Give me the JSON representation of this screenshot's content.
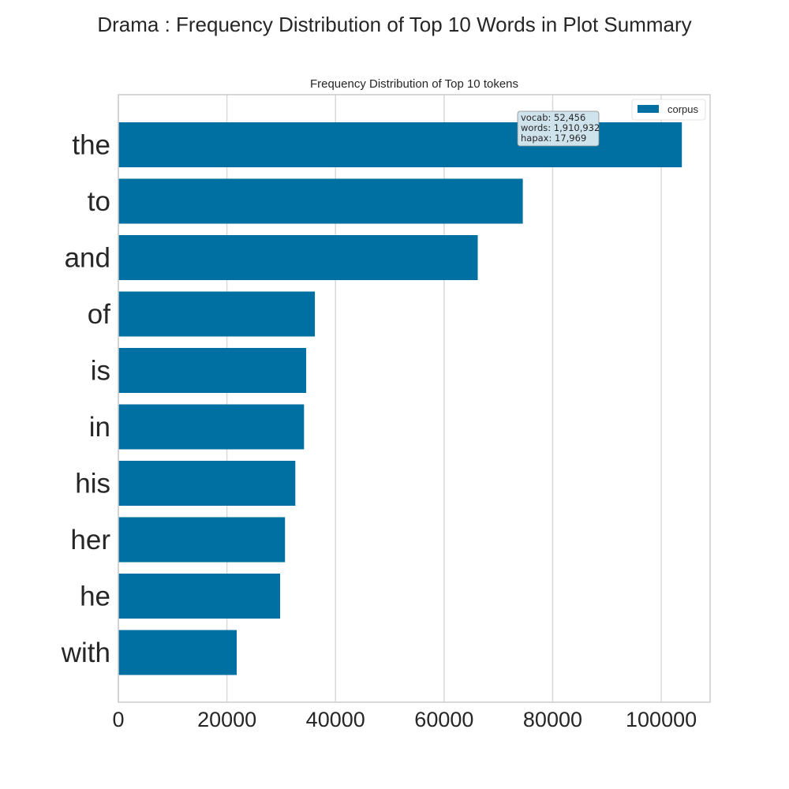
{
  "figure_title": "Drama : Frequency Distribution of Top 10 Words in Plot Summary",
  "chart_data": {
    "type": "bar",
    "orientation": "horizontal",
    "title": "Frequency Distribution of Top 10 tokens",
    "categories": [
      "the",
      "to",
      "and",
      "of",
      "is",
      "in",
      "his",
      "her",
      "he",
      "with"
    ],
    "series": [
      {
        "name": "corpus",
        "color": "#0070a2",
        "values": [
          103800,
          74500,
          66200,
          36200,
          34600,
          34200,
          32600,
          30700,
          29800,
          21800
        ]
      }
    ],
    "xlim": [
      0,
      109000
    ],
    "xticks": [
      0,
      20000,
      40000,
      60000,
      80000,
      100000
    ],
    "xtick_labels": [
      "0",
      "20000",
      "40000",
      "60000",
      "80000",
      "100000"
    ],
    "xlabel": "",
    "ylabel": "",
    "grid": true,
    "legend_position": "top-right",
    "stats_box": {
      "lines": [
        "vocab: 52,456",
        "words: 1,910,932",
        "hapax: 17,969"
      ]
    }
  }
}
